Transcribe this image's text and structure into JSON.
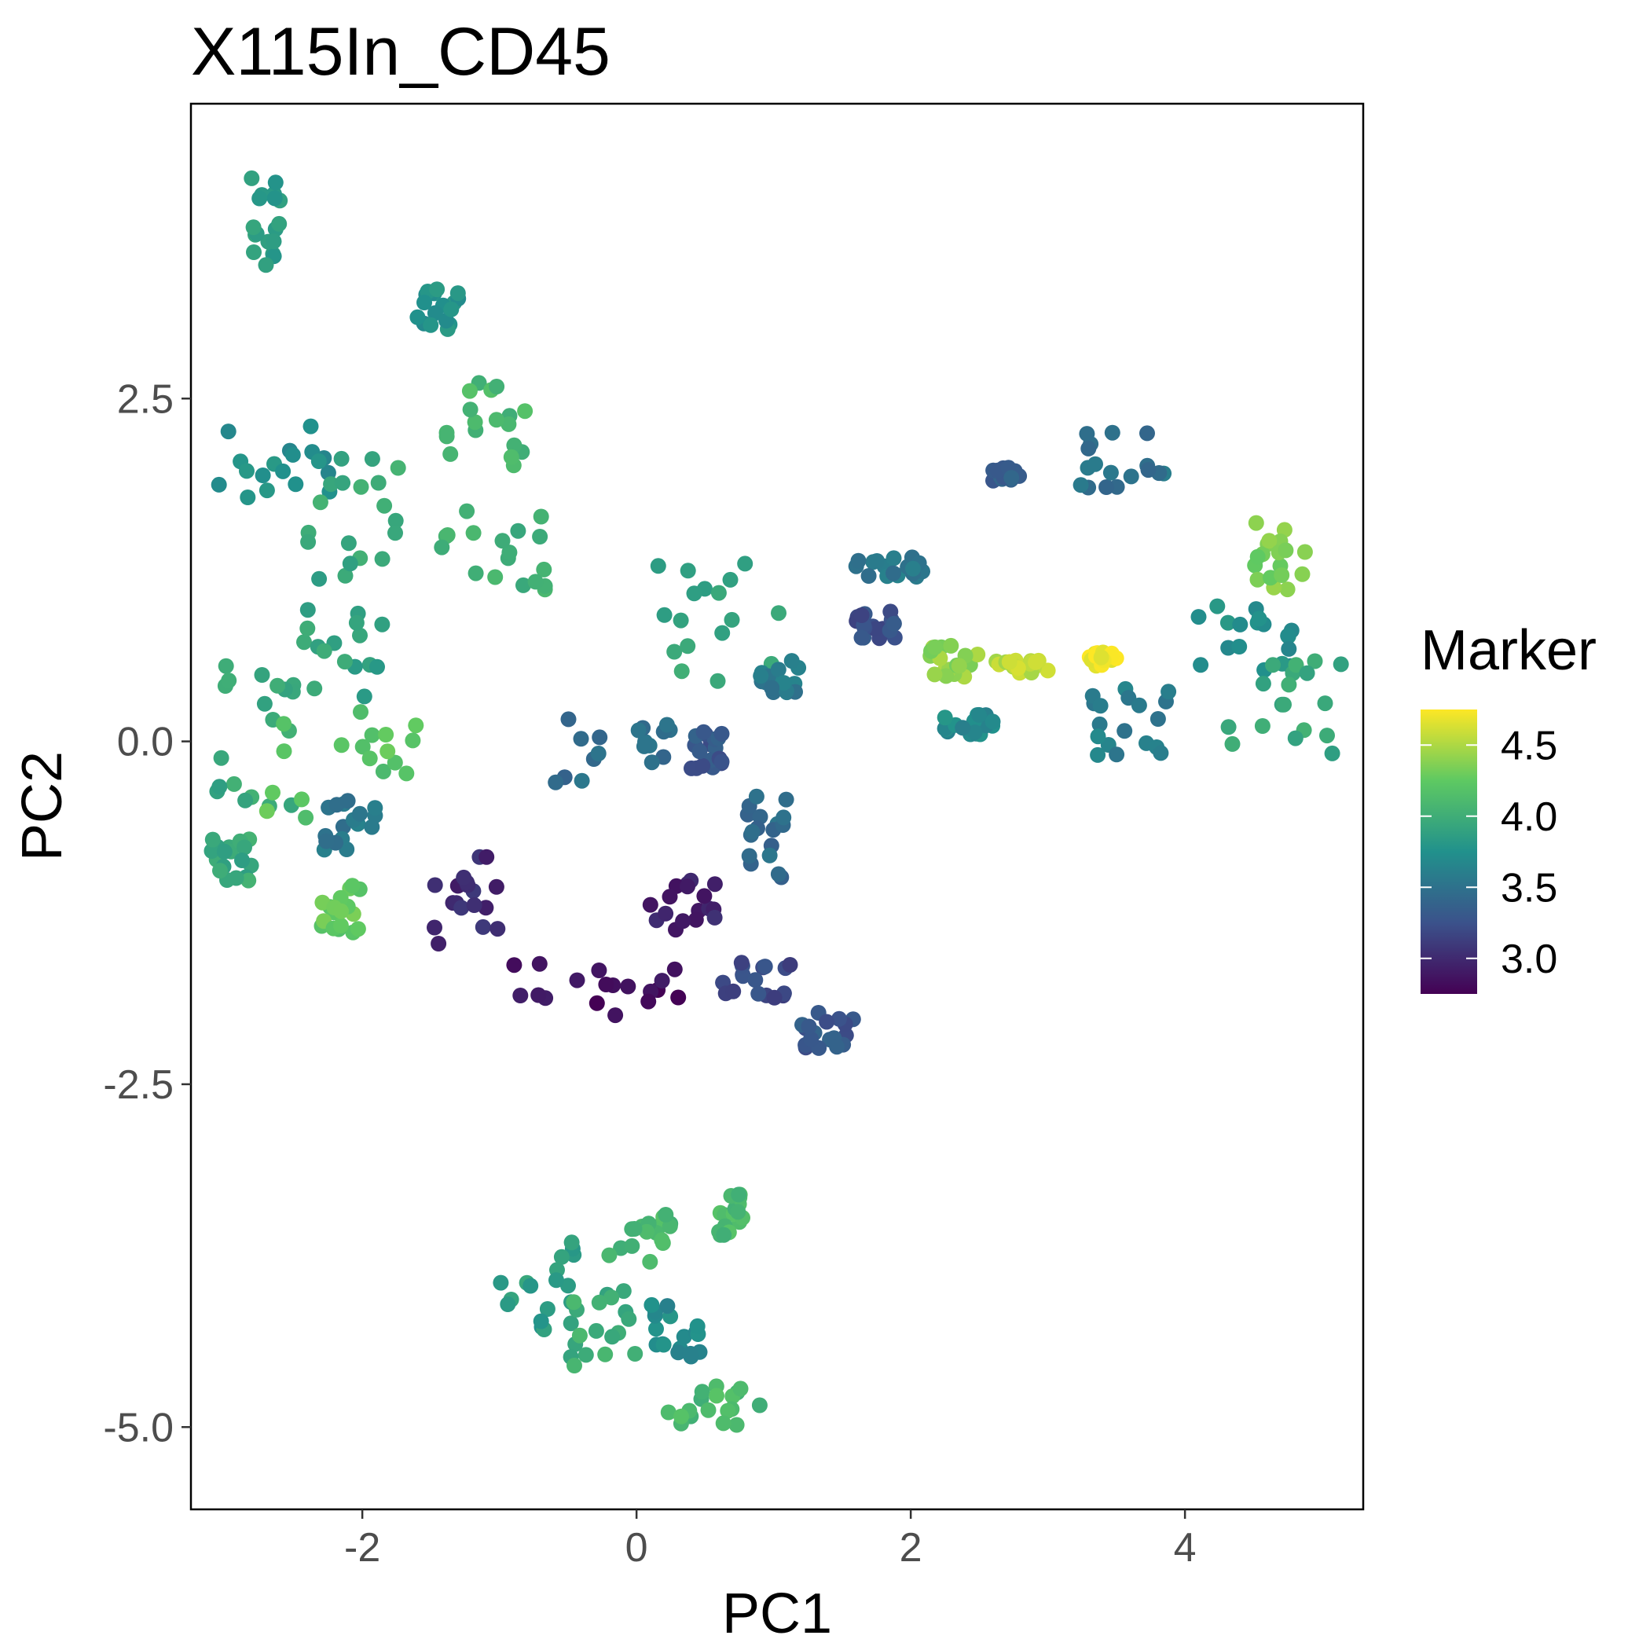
{
  "chart_data": {
    "type": "scatter",
    "title": "X115In_CD45",
    "xlabel": "PC1",
    "ylabel": "PC2",
    "xlim": [
      -3.25,
      5.3
    ],
    "ylim": [
      -5.6,
      4.65
    ],
    "xticks": [
      -2,
      0,
      2,
      4
    ],
    "xtick_labels": [
      "-2",
      "0",
      "2",
      "4"
    ],
    "yticks": [
      2.5,
      0.0,
      -2.5,
      -5.0
    ],
    "ytick_labels": [
      "2.5",
      "0.0",
      "-2.5",
      "-5.0"
    ],
    "grid": false,
    "legend": {
      "title": "Marker",
      "placement": "right",
      "type": "colorbar",
      "range": [
        2.75,
        4.75
      ],
      "ticks": [
        4.5,
        4.0,
        3.5,
        3.0
      ],
      "tick_labels": [
        "4.5",
        "4.0",
        "3.5",
        "3.0"
      ],
      "palette": [
        "#440154",
        "#3b528b",
        "#21918c",
        "#5ec962",
        "#fde725"
      ]
    },
    "point_color": "marker value (viridis)",
    "clusters": [
      {
        "x_range": [
          -2.85,
          -2.6
        ],
        "y_range": [
          3.4,
          4.2
        ],
        "marker": 3.85
      },
      {
        "x_range": [
          -3.05,
          -2.2
        ],
        "y_range": [
          1.7,
          2.3
        ],
        "marker": 3.75
      },
      {
        "x_range": [
          -2.4,
          -1.6
        ],
        "y_range": [
          1.2,
          2.2
        ],
        "marker": 3.95
      },
      {
        "x_range": [
          -2.6,
          -1.8
        ],
        "y_range": [
          0.3,
          1.2
        ],
        "marker": 3.9
      },
      {
        "x_range": [
          -3.2,
          -2.5
        ],
        "y_range": [
          -0.5,
          0.6
        ],
        "marker": 3.95
      },
      {
        "x_range": [
          -2.7,
          -1.6
        ],
        "y_range": [
          -0.6,
          0.3
        ],
        "marker": 4.2
      },
      {
        "x_range": [
          -2.3,
          -1.9
        ],
        "y_range": [
          -0.8,
          -0.4
        ],
        "marker": 3.55
      },
      {
        "x_range": [
          -2.3,
          -2.0
        ],
        "y_range": [
          -1.4,
          -1.0
        ],
        "marker": 4.25
      },
      {
        "x_range": [
          -3.1,
          -2.8
        ],
        "y_range": [
          -1.1,
          -0.7
        ],
        "marker": 3.95
      },
      {
        "x_range": [
          -1.4,
          -0.8
        ],
        "y_range": [
          2.0,
          2.7
        ],
        "marker": 4.1
      },
      {
        "x_range": [
          -1.6,
          -1.3
        ],
        "y_range": [
          3.0,
          3.3
        ],
        "marker": 3.75
      },
      {
        "x_range": [
          -1.5,
          -0.6
        ],
        "y_range": [
          1.1,
          1.7
        ],
        "marker": 4.0
      },
      {
        "x_range": [
          -0.6,
          0.3
        ],
        "y_range": [
          -0.3,
          0.2
        ],
        "marker": 3.45
      },
      {
        "x_range": [
          0.1,
          1.1
        ],
        "y_range": [
          0.4,
          1.4
        ],
        "marker": 3.95
      },
      {
        "x_range": [
          0.4,
          0.7
        ],
        "y_range": [
          -0.2,
          0.1
        ],
        "marker": 3.3
      },
      {
        "x_range": [
          0.9,
          1.2
        ],
        "y_range": [
          0.3,
          0.6
        ],
        "marker": 3.55
      },
      {
        "x_range": [
          0.8,
          1.1
        ],
        "y_range": [
          -1.0,
          -0.4
        ],
        "marker": 3.45
      },
      {
        "x_range": [
          -1.5,
          -1.0
        ],
        "y_range": [
          -1.5,
          -0.8
        ],
        "marker": 3.0
      },
      {
        "x_range": [
          -1.0,
          0.4
        ],
        "y_range": [
          -2.0,
          -1.6
        ],
        "marker": 2.85
      },
      {
        "x_range": [
          0.1,
          0.6
        ],
        "y_range": [
          -1.4,
          -1.0
        ],
        "marker": 2.95
      },
      {
        "x_range": [
          0.6,
          1.2
        ],
        "y_range": [
          -2.0,
          -1.6
        ],
        "marker": 3.2
      },
      {
        "x_range": [
          1.2,
          1.6
        ],
        "y_range": [
          -2.25,
          -1.95
        ],
        "marker": 3.3
      },
      {
        "x_range": [
          1.6,
          2.1
        ],
        "y_range": [
          1.2,
          1.35
        ],
        "marker": 3.55
      },
      {
        "x_range": [
          1.6,
          1.9
        ],
        "y_range": [
          0.75,
          0.95
        ],
        "marker": 3.25
      },
      {
        "x_range": [
          2.1,
          2.5
        ],
        "y_range": [
          0.45,
          0.7
        ],
        "marker": 4.4
      },
      {
        "x_range": [
          2.6,
          3.0
        ],
        "y_range": [
          0.5,
          0.6
        ],
        "marker": 4.55
      },
      {
        "x_range": [
          3.3,
          3.5
        ],
        "y_range": [
          0.55,
          0.65
        ],
        "marker": 4.7
      },
      {
        "x_range": [
          2.6,
          2.8
        ],
        "y_range": [
          1.9,
          2.0
        ],
        "marker": 3.35
      },
      {
        "x_range": [
          3.2,
          3.9
        ],
        "y_range": [
          1.8,
          2.3
        ],
        "marker": 3.5
      },
      {
        "x_range": [
          2.2,
          2.6
        ],
        "y_range": [
          0.05,
          0.2
        ],
        "marker": 3.7
      },
      {
        "x_range": [
          3.3,
          3.9
        ],
        "y_range": [
          -0.1,
          0.4
        ],
        "marker": 3.6
      },
      {
        "x_range": [
          4.0,
          4.8
        ],
        "y_range": [
          0.5,
          1.0
        ],
        "marker": 3.75
      },
      {
        "x_range": [
          4.5,
          4.9
        ],
        "y_range": [
          1.1,
          1.6
        ],
        "marker": 4.35
      },
      {
        "x_range": [
          4.3,
          5.2
        ],
        "y_range": [
          -0.1,
          0.6
        ],
        "marker": 3.95
      },
      {
        "x_range": [
          -1.0,
          -0.4
        ],
        "y_range": [
          -4.3,
          -3.6
        ],
        "marker": 3.85
      },
      {
        "x_range": [
          -0.5,
          0.0
        ],
        "y_range": [
          -4.6,
          -4.0
        ],
        "marker": 4.0
      },
      {
        "x_range": [
          -0.2,
          0.3
        ],
        "y_range": [
          -3.8,
          -3.4
        ],
        "marker": 4.1
      },
      {
        "x_range": [
          0.1,
          0.5
        ],
        "y_range": [
          -4.5,
          -4.1
        ],
        "marker": 3.7
      },
      {
        "x_range": [
          0.2,
          0.9
        ],
        "y_range": [
          -5.0,
          -4.7
        ],
        "marker": 4.1
      },
      {
        "x_range": [
          0.6,
          0.8
        ],
        "y_range": [
          -3.6,
          -3.3
        ],
        "marker": 4.1
      }
    ]
  }
}
